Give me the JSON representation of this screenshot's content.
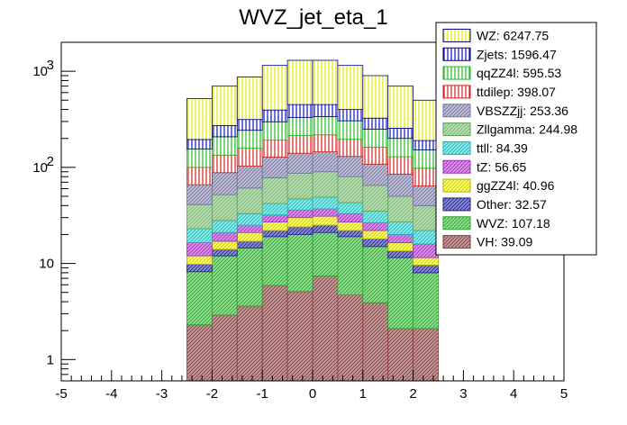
{
  "chart_data": {
    "type": "bar",
    "stacked": true,
    "title": "WVZ_jet_eta_1",
    "xlabel": "",
    "ylabel": "",
    "yscale": "log",
    "xlim": [
      -5,
      5
    ],
    "ylim": [
      0.6,
      2000
    ],
    "bin_edges": [
      -2.5,
      -2.0,
      -1.5,
      -1.0,
      -0.5,
      0.0,
      0.5,
      1.0,
      1.5,
      2.0,
      2.5
    ],
    "x_ticks": [
      "-5",
      "-4",
      "-3",
      "-2",
      "-1",
      "0",
      "1",
      "2",
      "3",
      "4",
      "5"
    ],
    "y_ticks": [
      {
        "value": 1,
        "base": "1",
        "exp": ""
      },
      {
        "value": 10,
        "base": "10",
        "exp": ""
      },
      {
        "value": 100,
        "base": "10",
        "exp": "2"
      },
      {
        "value": 1000,
        "base": "10",
        "exp": "3"
      }
    ],
    "legend_position": "top-right",
    "series": [
      {
        "name": "VH",
        "legend": "VH: 39.09",
        "fill": "#c49a9a",
        "hatch": "#8b3a3a",
        "stroke": "#8b3a3a",
        "pattern": "diag",
        "top": [
          2.3,
          2.9,
          3.6,
          5.9,
          5.1,
          7.4,
          4.7,
          3.9,
          2.1,
          2.1
        ]
      },
      {
        "name": "WVZ",
        "legend": "WVZ: 107.18",
        "fill": "#8fe08f",
        "hatch": "#2ca02c",
        "stroke": "#2ca02c",
        "pattern": "diag",
        "top": [
          8.2,
          12,
          14.5,
          19,
          20,
          21,
          19,
          15,
          11.5,
          8.0
        ]
      },
      {
        "name": "Other",
        "legend": "Other: 32.57",
        "fill": "#8f8fd8",
        "hatch": "#1f1f8f",
        "stroke": "#1f1f8f",
        "pattern": "diag",
        "top": [
          9.8,
          14,
          17,
          22,
          24,
          25,
          22,
          18,
          13.5,
          9.6
        ]
      },
      {
        "name": "ggZZ4l",
        "legend": "ggZZ4l: 40.96",
        "fill": "#ffff66",
        "hatch": "#c8c800",
        "stroke": "#b0b000",
        "pattern": "diag",
        "top": [
          12,
          17,
          21,
          27,
          30,
          31,
          27,
          22,
          16.5,
          11.5
        ]
      },
      {
        "name": "tZ",
        "legend": "tZ: 56.65",
        "fill": "#e090f0",
        "hatch": "#9a30c0",
        "stroke": "#9a30c0",
        "pattern": "diag",
        "top": [
          16.5,
          21,
          25,
          32,
          36,
          37,
          33,
          26.5,
          20,
          16
        ]
      },
      {
        "name": "ttll",
        "legend": "ttll: 84.39",
        "fill": "#88f0f0",
        "hatch": "#20b0b0",
        "stroke": "#20b0b0",
        "pattern": "diag",
        "top": [
          23,
          28,
          33,
          42,
          47,
          49,
          43,
          35,
          27,
          22
        ]
      },
      {
        "name": "Zllgamma",
        "legend": "Zllgamma: 244.98",
        "fill": "#b8e0b0",
        "hatch": "#70b070",
        "stroke": "#60a060",
        "pattern": "diag",
        "top": [
          41,
          52,
          61,
          78,
          87,
          90,
          80,
          65,
          50,
          40
        ]
      },
      {
        "name": "VBSZZjj",
        "legend": "VBSZZjj: 253.36",
        "fill": "#c0c0d8",
        "hatch": "#7070a0",
        "stroke": "#7070a0",
        "pattern": "diag",
        "top": [
          66,
          88,
          103,
          128,
          140,
          145,
          130,
          108,
          85,
          64
        ]
      },
      {
        "name": "ttdilep",
        "legend": "ttdilep: 398.07",
        "fill": "#ffffff",
        "hatch": "#d42020",
        "stroke": "#d42020",
        "pattern": "vert",
        "top": [
          100,
          134,
          158,
          192,
          214,
          218,
          196,
          162,
          129,
          98
        ]
      },
      {
        "name": "qqZZ4l",
        "legend": "qqZZ4l: 595.53",
        "fill": "#ffffff",
        "hatch": "#22b822",
        "stroke": "#22b822",
        "pattern": "vert",
        "top": [
          155,
          208,
          243,
          298,
          330,
          338,
          305,
          250,
          200,
          152
        ]
      },
      {
        "name": "Zjets",
        "legend": "Zjets: 1596.47",
        "fill": "#ffffff",
        "hatch": "#1010c0",
        "stroke": "#000080",
        "pattern": "vert",
        "top": [
          195,
          272,
          315,
          395,
          450,
          450,
          400,
          325,
          255,
          190
        ]
      },
      {
        "name": "WZ",
        "legend": "WZ: 6247.75",
        "fill": "#ffffff",
        "hatch": "#e8e800",
        "stroke": "#000080",
        "pattern": "vert",
        "top": [
          520,
          700,
          870,
          1150,
          1300,
          1300,
          1150,
          900,
          700,
          500
        ]
      }
    ]
  }
}
